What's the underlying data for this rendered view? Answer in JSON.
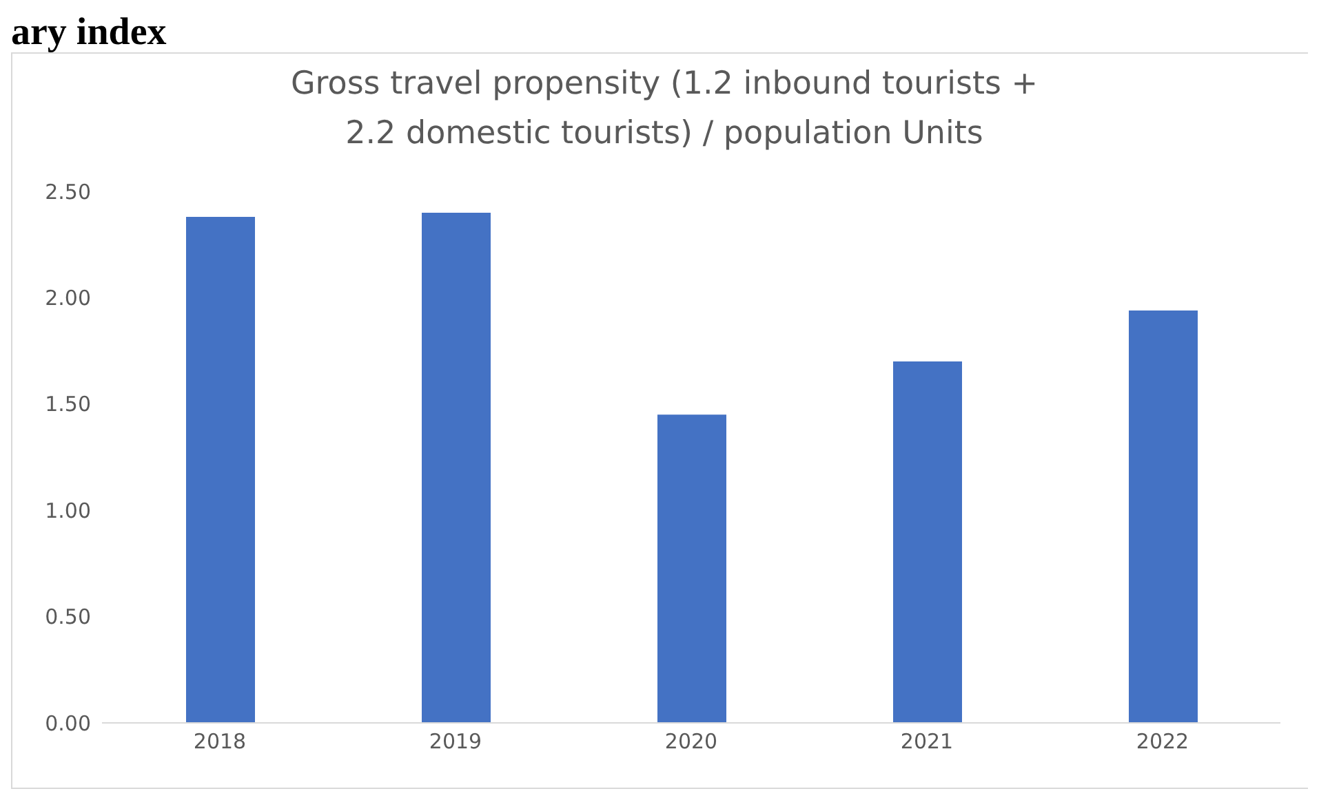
{
  "chart_data": {
    "type": "bar",
    "title": "Gross travel propensity (1.2 inbound tourists + 2.2 domestic tourists) / population Units",
    "annotations": [
      "ary index"
    ],
    "categories": [
      "2018",
      "2019",
      "2020",
      "2021",
      "2022"
    ],
    "values": [
      2.38,
      2.4,
      1.45,
      1.7,
      1.94
    ],
    "color": "#4472c4",
    "ylim": [
      0,
      2.5
    ],
    "yticks": [
      {
        "value": 0,
        "label": "0.00"
      },
      {
        "value": 0.5,
        "label": "0.50"
      },
      {
        "value": 1,
        "label": "1.00"
      },
      {
        "value": 1.5,
        "label": "1.50"
      },
      {
        "value": 2,
        "label": "2.00"
      },
      {
        "value": 2.5,
        "label": "2.50"
      }
    ],
    "grid": false
  }
}
